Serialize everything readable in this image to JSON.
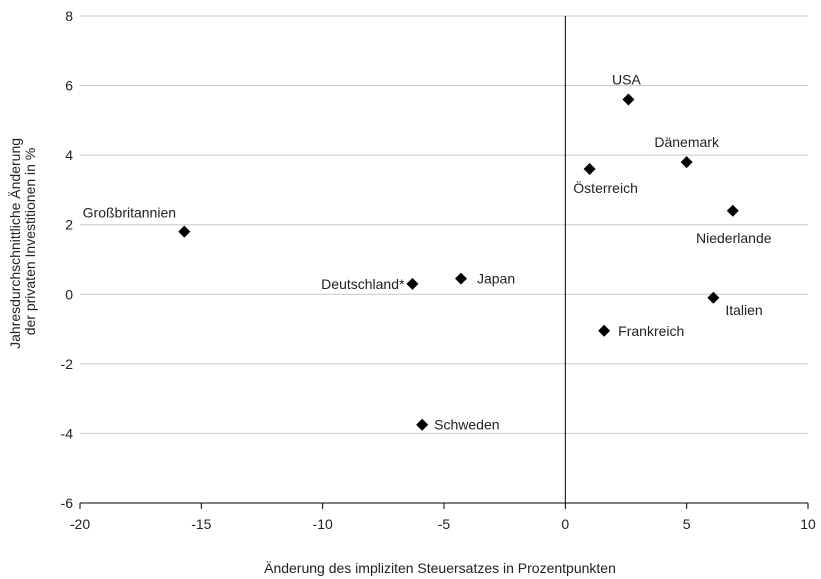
{
  "chart_data": {
    "type": "scatter",
    "title": "",
    "xlabel": "Änderung des impliziten Steuersatzes in Prozentpunkten",
    "ylabel": "Jahresdurchschnittliche Änderung der privaten Investitionen in %",
    "ylabel_lines": [
      "Jahresdurchschnittliche Änderung",
      "der privaten Investitionen in %"
    ],
    "xlim": [
      -20,
      10
    ],
    "ylim": [
      -6,
      8
    ],
    "xticks": [
      -20,
      -15,
      -10,
      -5,
      0,
      5,
      10
    ],
    "yticks": [
      -6,
      -4,
      -2,
      0,
      2,
      4,
      6,
      8
    ],
    "grid": "horizontal",
    "marker": "diamond",
    "marker_color": "#000000",
    "points": [
      {
        "label": "Großbritannien",
        "x": -15.7,
        "y": 1.8
      },
      {
        "label": "Deutschland*",
        "x": -6.3,
        "y": 0.3
      },
      {
        "label": "Japan",
        "x": -4.3,
        "y": 0.45
      },
      {
        "label": "Schweden",
        "x": -5.9,
        "y": -3.75
      },
      {
        "label": "USA",
        "x": 2.6,
        "y": 5.6
      },
      {
        "label": "Österreich",
        "x": 1.0,
        "y": 3.6
      },
      {
        "label": "Dänemark",
        "x": 5.0,
        "y": 3.8
      },
      {
        "label": "Niederlande",
        "x": 6.9,
        "y": 2.4
      },
      {
        "label": "Italien",
        "x": 6.1,
        "y": -0.1
      },
      {
        "label": "Frankreich",
        "x": 1.6,
        "y": -1.05
      }
    ]
  }
}
